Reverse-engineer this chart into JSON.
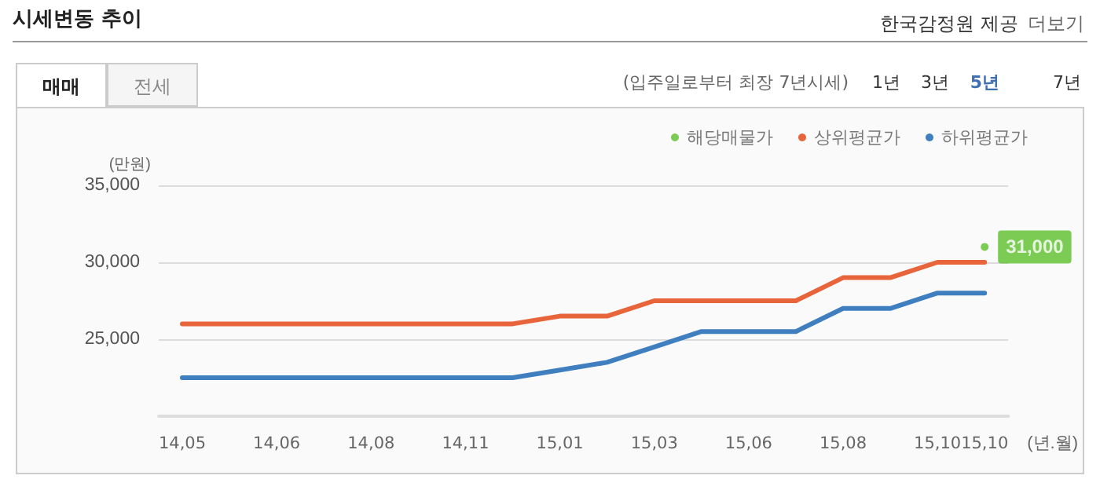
{
  "chart_data": {
    "type": "line",
    "title": "시세변동 추이",
    "xlabel": "(년.월)",
    "ylabel": "(만원)",
    "annotations": [
      "한국감정원 제공",
      "더보기",
      "(입주일로부터 최장 7년시세)",
      "1년",
      "3년",
      "5년",
      "7년",
      "매매",
      "전세"
    ],
    "categories": [
      "14,05",
      null,
      "14,06",
      null,
      "14,08",
      null,
      "14,11",
      null,
      "15,01",
      null,
      "15,03",
      null,
      "15,06",
      null,
      "15,08",
      null,
      "15,10",
      "15,10"
    ],
    "series": [
      {
        "name": "해당매물가",
        "color": "#5cbf2a",
        "type": "scatter",
        "marker": "circle",
        "values": [
          null,
          null,
          null,
          null,
          null,
          null,
          null,
          null,
          null,
          null,
          null,
          null,
          null,
          null,
          null,
          null,
          null,
          31000
        ],
        "value_labels": [
          null,
          null,
          null,
          null,
          null,
          null,
          null,
          null,
          null,
          null,
          null,
          null,
          null,
          null,
          null,
          null,
          null,
          "31,000"
        ]
      },
      {
        "name": "상위평균가",
        "color": "#e8643a",
        "values": [
          26000,
          26000,
          26000,
          26000,
          26000,
          26000,
          26000,
          26000,
          26500,
          26500,
          27500,
          27500,
          27500,
          27500,
          29000,
          29000,
          30000,
          30000
        ]
      },
      {
        "name": "하위평균가",
        "color": "#3f7fbf",
        "values": [
          22500,
          22500,
          22500,
          22500,
          22500,
          22500,
          22500,
          22500,
          23000,
          23500,
          24500,
          25500,
          25500,
          25500,
          27000,
          27000,
          28000,
          28000
        ]
      }
    ],
    "ylim": [
      20000,
      35000
    ],
    "yticks": [
      {
        "value": 20000,
        "label": null
      },
      {
        "value": 25000,
        "label": "25,000"
      },
      {
        "value": 30000,
        "label": "30,000"
      },
      {
        "value": 35000,
        "label": "35,000"
      }
    ],
    "grid": "y",
    "legend": "top right",
    "marker": "none",
    "line_style": "solid"
  }
}
